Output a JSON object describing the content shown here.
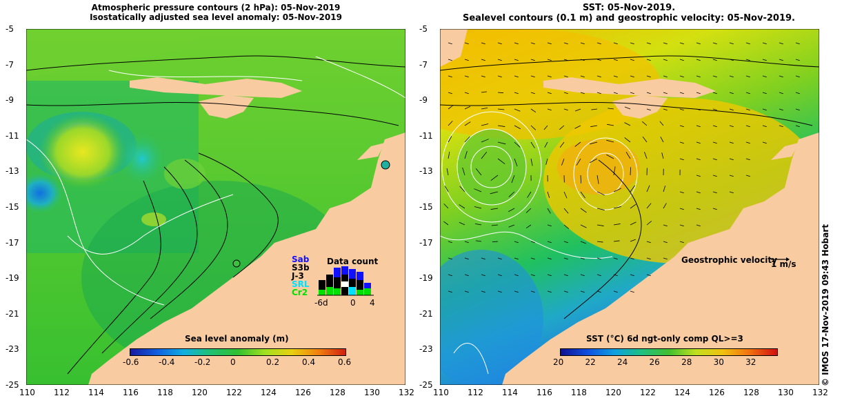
{
  "left_panel": {
    "title_line1": "Atmospheric pressure contours (2 hPa): 05-Nov-2019",
    "title_line2": "Isostatically adjusted sea level anomaly: 05-Nov-2019",
    "colorbar": {
      "label": "Sea level anomaly (m)",
      "ticks": [
        "-0.6",
        "-0.4",
        "-0.2",
        "0",
        "0.2",
        "0.4",
        "0.6"
      ],
      "range": [
        -0.6,
        0.6
      ]
    },
    "data_count": {
      "title": "Data count",
      "satellites": [
        {
          "name": "Sab",
          "color": "#1010ff"
        },
        {
          "name": "S3b",
          "color": "#000000"
        },
        {
          "name": "J-3",
          "color": "#000000"
        },
        {
          "name": "SRL",
          "color": "#00e0ff"
        },
        {
          "name": "Cr2",
          "color": "#00e000"
        }
      ],
      "x_ticks": [
        "-6d",
        "0",
        "4"
      ]
    }
  },
  "right_panel": {
    "title_line1": "SST: 05-Nov-2019.",
    "title_line2": "Sealevel contours (0.1 m) and geostrophic velocity: 05-Nov-2019.",
    "colorbar": {
      "label": "SST (°C) 6d ngt-only comp QL>=3",
      "ticks": [
        "20",
        "22",
        "24",
        "26",
        "28",
        "30",
        "32"
      ],
      "range": [
        20,
        33.5
      ]
    },
    "velocity_legend": {
      "label": "Geostrophic velocity",
      "unit": "1 m/s"
    }
  },
  "axes": {
    "lon_ticks": [
      "110",
      "112",
      "114",
      "116",
      "118",
      "120",
      "122",
      "124",
      "126",
      "128",
      "130",
      "132"
    ],
    "lat_ticks": [
      "-5",
      "-7",
      "-9",
      "-11",
      "-13",
      "-15",
      "-17",
      "-19",
      "-21",
      "-23",
      "-25"
    ],
    "lon_range": [
      110,
      132
    ],
    "lat_range": [
      -25,
      -5
    ]
  },
  "credit": "© IMOS 17-Nov-2019 09:43 Hobart",
  "colors": {
    "land": "#f9cba0",
    "sla_base": "#2fbf30",
    "sst_warm": "#f5c400",
    "sst_cool": "#30a0ff"
  }
}
